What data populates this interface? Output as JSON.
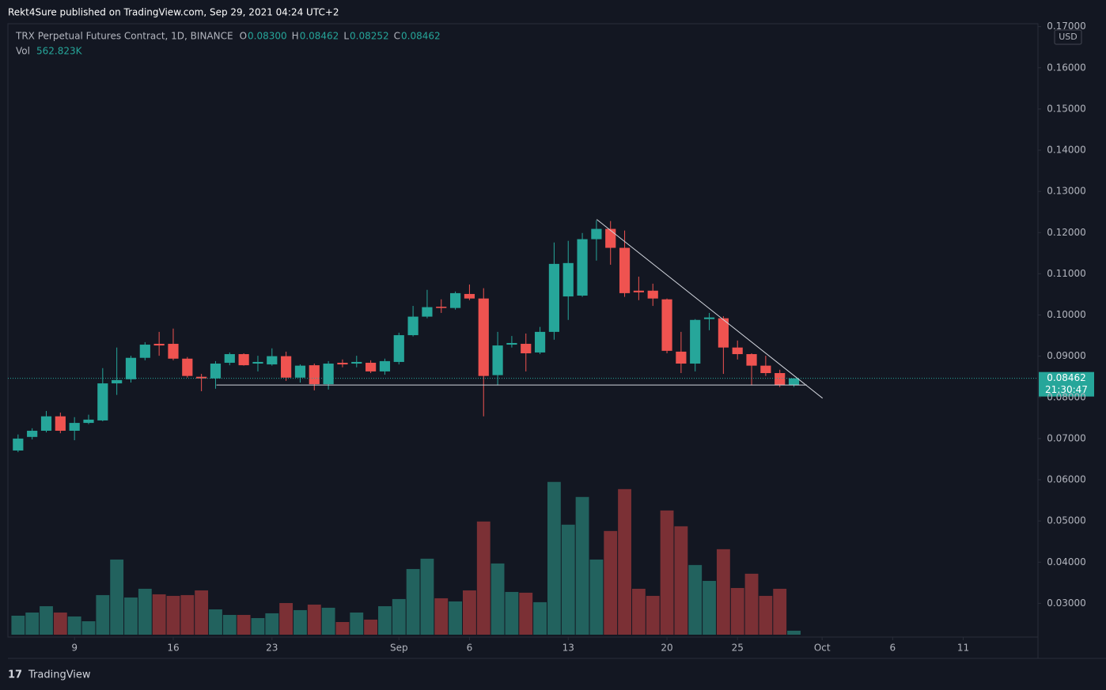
{
  "header": {
    "text": "Rekt4Sure published on TradingView.com, Sep 29, 2021 04:24 UTC+2"
  },
  "footer": {
    "brand": "TradingView"
  },
  "chart_data": {
    "type": "candlestick",
    "title": "TRX Perpetual Futures Contract, 1D, BINANCE",
    "legend_fields": [
      {
        "label": "O",
        "value": "0.08300"
      },
      {
        "label": "H",
        "value": "0.08462"
      },
      {
        "label": "L",
        "value": "0.08252"
      },
      {
        "label": "C",
        "value": "0.08462"
      }
    ],
    "volume_name": "Vol",
    "volume_label": "562.823K",
    "currency": "USD",
    "last_price_label": "0.08462",
    "countdown": "21:30:47",
    "up_color": "#26a69a",
    "down_color": "#ef5350",
    "volume_up_color": "#22625e",
    "volume_down_color": "#7b3035",
    "grid": false,
    "x": [
      5,
      6,
      7,
      8,
      9,
      10,
      11,
      12,
      13,
      14,
      15,
      16,
      17,
      18,
      19,
      20,
      21,
      22,
      23,
      24,
      25,
      26,
      27,
      28,
      29,
      30,
      31,
      32,
      33,
      34,
      35,
      36,
      37,
      38,
      39,
      40,
      41,
      42,
      43,
      44,
      45,
      46,
      47,
      48,
      49,
      50,
      51,
      52,
      53,
      54,
      55,
      56,
      57,
      58,
      59,
      60
    ],
    "open": [
      0.0671,
      0.0704,
      0.0719,
      0.0754,
      0.0719,
      0.0738,
      0.0744,
      0.0834,
      0.0844,
      0.0896,
      0.093,
      0.093,
      0.0894,
      0.085,
      0.0846,
      0.0884,
      0.0905,
      0.0882,
      0.088,
      0.09,
      0.0848,
      0.0878,
      0.0832,
      0.0884,
      0.0882,
      0.0884,
      0.0863,
      0.0886,
      0.0951,
      0.0996,
      0.102,
      0.1017,
      0.1051,
      0.104,
      0.0854,
      0.0928,
      0.093,
      0.0909,
      0.0959,
      0.1045,
      0.1047,
      0.1184,
      0.1209,
      0.1163,
      0.1059,
      0.1059,
      0.1038,
      0.0911,
      0.0882,
      0.099,
      0.0992,
      0.0921,
      0.0905,
      0.0877,
      0.0859,
      0.083
    ],
    "high": [
      0.071,
      0.0725,
      0.0767,
      0.0763,
      0.0752,
      0.0758,
      0.0871,
      0.0921,
      0.0901,
      0.0934,
      0.0959,
      0.0967,
      0.0898,
      0.0857,
      0.0888,
      0.0909,
      0.0907,
      0.0901,
      0.0919,
      0.0911,
      0.088,
      0.0882,
      0.0888,
      0.0892,
      0.0901,
      0.089,
      0.0894,
      0.0957,
      0.1022,
      0.1061,
      0.1038,
      0.1057,
      0.1074,
      0.1065,
      0.0959,
      0.0949,
      0.0955,
      0.0971,
      0.1176,
      0.118,
      0.1199,
      0.123,
      0.1228,
      0.1205,
      0.1093,
      0.1076,
      0.104,
      0.0959,
      0.099,
      0.1005,
      0.0997,
      0.0938,
      0.0907,
      0.0901,
      0.0867,
      0.08462
    ],
    "low": [
      0.0667,
      0.0698,
      0.0715,
      0.0713,
      0.0696,
      0.0735,
      0.0742,
      0.0806,
      0.0836,
      0.089,
      0.0901,
      0.089,
      0.0848,
      0.0815,
      0.0821,
      0.0878,
      0.0877,
      0.0863,
      0.0877,
      0.084,
      0.0836,
      0.0817,
      0.0819,
      0.0873,
      0.0873,
      0.0859,
      0.0855,
      0.088,
      0.0948,
      0.0992,
      0.1005,
      0.1013,
      0.1036,
      0.0754,
      0.0829,
      0.0921,
      0.0863,
      0.0905,
      0.094,
      0.0988,
      0.1044,
      0.1132,
      0.1122,
      0.1044,
      0.1036,
      0.1022,
      0.0907,
      0.0859,
      0.0863,
      0.0963,
      0.0857,
      0.0892,
      0.0829,
      0.0852,
      0.0825,
      0.08252
    ],
    "close": [
      0.07,
      0.0719,
      0.0754,
      0.0719,
      0.0738,
      0.0746,
      0.0834,
      0.0842,
      0.0896,
      0.0928,
      0.0926,
      0.0894,
      0.0852,
      0.0846,
      0.0882,
      0.0905,
      0.0878,
      0.0886,
      0.09,
      0.0848,
      0.0877,
      0.0832,
      0.0882,
      0.088,
      0.0886,
      0.0863,
      0.0888,
      0.0951,
      0.0996,
      0.1019,
      0.1017,
      0.1053,
      0.104,
      0.0852,
      0.0926,
      0.0932,
      0.0907,
      0.0959,
      0.1124,
      0.1126,
      0.1184,
      0.1209,
      0.1163,
      0.1053,
      0.1055,
      0.104,
      0.0913,
      0.0882,
      0.0988,
      0.0994,
      0.0921,
      0.0905,
      0.0877,
      0.0859,
      0.083,
      0.08462
    ],
    "volume": [
      2700000,
      3150000,
      4050000,
      3150000,
      2590000,
      1910000,
      5630000,
      10690000,
      5290000,
      6530000,
      5740000,
      5520000,
      5630000,
      6300000,
      3600000,
      2810000,
      2810000,
      2360000,
      3040000,
      4500000,
      3490000,
      4280000,
      3830000,
      1800000,
      3150000,
      2140000,
      4050000,
      5070000,
      9340000,
      10810000,
      5180000,
      4730000,
      6300000,
      16100000,
      10130000,
      6080000,
      5970000,
      4620000,
      21730000,
      15650000,
      19590000,
      10690000,
      14750000,
      20710000,
      6530000,
      5520000,
      17670000,
      15420000,
      9910000,
      7650000,
      12160000,
      6640000,
      8670000,
      5520000,
      6530000,
      562823
    ],
    "trendlines": [
      {
        "x": [
          46.02,
          62.03
        ],
        "y": [
          0.1232,
          0.0798
        ]
      },
      {
        "x": [
          19.06,
          60.91
        ],
        "y": [
          0.083,
          0.083
        ]
      }
    ],
    "xlim": [
      4.28,
      77.3
    ],
    "xticks": [
      9,
      16,
      23,
      {
        "value": 32,
        "label": "Sep"
      },
      {
        "value": 37,
        "label": "6"
      },
      {
        "value": 44,
        "label": "13"
      },
      {
        "value": 51,
        "label": "20"
      },
      {
        "value": 56,
        "label": "25"
      },
      {
        "value": 62,
        "label": "Oct"
      },
      {
        "value": 67,
        "label": "6"
      },
      {
        "value": 72,
        "label": "11"
      }
    ],
    "ylim": [
      0.0224,
      0.1707
    ],
    "yticks": [
      {
        "value": 0.03,
        "label": "0.03000"
      },
      {
        "value": 0.04,
        "label": "0.04000"
      },
      {
        "value": 0.05,
        "label": "0.05000"
      },
      {
        "value": 0.06,
        "label": "0.06000"
      },
      {
        "value": 0.07,
        "label": "0.07000"
      },
      {
        "value": 0.08,
        "label": "0.08000"
      },
      {
        "value": 0.09,
        "label": "0.09000"
      },
      {
        "value": 0.1,
        "label": "0.10000"
      },
      {
        "value": 0.11,
        "label": "0.11000"
      },
      {
        "value": 0.12,
        "label": "0.12000"
      },
      {
        "value": 0.13,
        "label": "0.13000"
      },
      {
        "value": 0.14,
        "label": "0.14000"
      },
      {
        "value": 0.15,
        "label": "0.15000"
      },
      {
        "value": 0.16,
        "label": "0.16000"
      },
      {
        "value": 0.17,
        "label": "0.17000"
      }
    ]
  }
}
